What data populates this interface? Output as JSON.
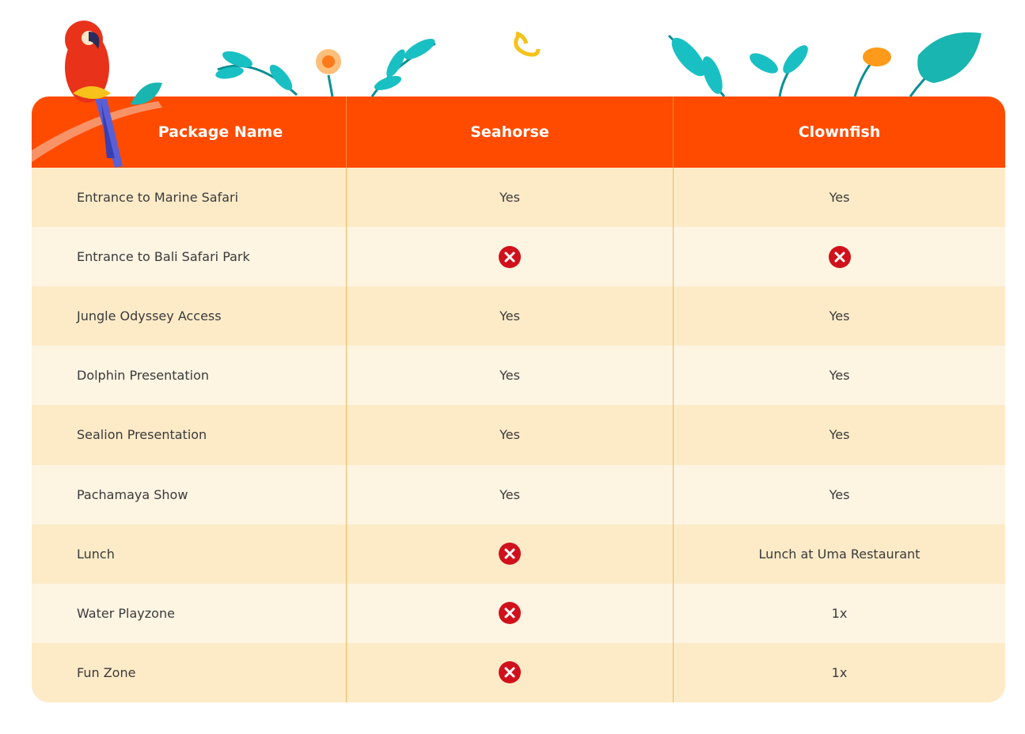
{
  "table": {
    "columns": [
      "Package Name",
      "Seahorse",
      "Clownfish"
    ],
    "rows": [
      [
        "Entrance to Marine Safari",
        "Yes",
        "Yes"
      ],
      [
        "Entrance to Bali Safari Park",
        null,
        null
      ],
      [
        "Jungle Odyssey Access",
        "Yes",
        "Yes"
      ],
      [
        "Dolphin Presentation",
        "Yes",
        "Yes"
      ],
      [
        "Sealion Presentation",
        "Yes",
        "Yes"
      ],
      [
        "Pachamaya Show",
        "Yes",
        "Yes"
      ],
      [
        "Lunch",
        null,
        "Lunch at Uma Restaurant"
      ],
      [
        "Water Playzone",
        null,
        "1x"
      ],
      [
        "Fun Zone",
        null,
        "1x"
      ]
    ]
  }
}
